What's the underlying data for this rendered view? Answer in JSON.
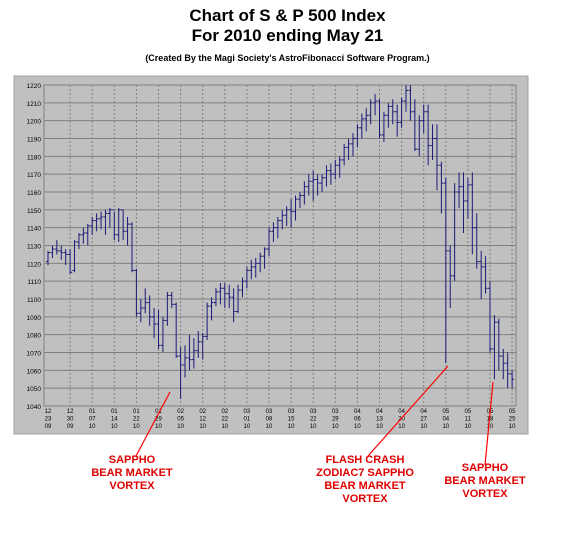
{
  "header": {
    "title_line1": "Chart of S & P 500 Index",
    "title_line2": "For 2010 ending May 21",
    "subtitle": "(Created By the Magi Society's AstroFibonacci Software Program.)"
  },
  "colors": {
    "panel_bg": "#c0c0c0",
    "grid": "#808080",
    "bars": "#1a1a7a",
    "annotation": "#e00000",
    "arrow": "#ff0000"
  },
  "chart_data": {
    "type": "ohlc",
    "title": "Chart of S & P 500 Index",
    "subtitle": "For 2010 ending May 21",
    "ylim": [
      1040,
      1220
    ],
    "yticks": [
      1040,
      1050,
      1060,
      1070,
      1080,
      1090,
      1100,
      1110,
      1120,
      1130,
      1140,
      1150,
      1160,
      1170,
      1180,
      1190,
      1200,
      1210,
      1220
    ],
    "xticks": [
      {
        "label": [
          "12",
          "23",
          "09"
        ],
        "idx": 0
      },
      {
        "label": [
          "12",
          "30",
          "09"
        ],
        "idx": 5
      },
      {
        "label": [
          "01",
          "07",
          "10"
        ],
        "idx": 10
      },
      {
        "label": [
          "01",
          "14",
          "10"
        ],
        "idx": 15
      },
      {
        "label": [
          "01",
          "22",
          "10"
        ],
        "idx": 20
      },
      {
        "label": [
          "01",
          "29",
          "10"
        ],
        "idx": 25
      },
      {
        "label": [
          "02",
          "05",
          "10"
        ],
        "idx": 30
      },
      {
        "label": [
          "02",
          "12",
          "10"
        ],
        "idx": 35
      },
      {
        "label": [
          "02",
          "22",
          "10"
        ],
        "idx": 40
      },
      {
        "label": [
          "03",
          "01",
          "10"
        ],
        "idx": 45
      },
      {
        "label": [
          "03",
          "08",
          "10"
        ],
        "idx": 50
      },
      {
        "label": [
          "03",
          "15",
          "10"
        ],
        "idx": 55
      },
      {
        "label": [
          "03",
          "22",
          "10"
        ],
        "idx": 60
      },
      {
        "label": [
          "03",
          "29",
          "10"
        ],
        "idx": 65
      },
      {
        "label": [
          "04",
          "06",
          "10"
        ],
        "idx": 70
      },
      {
        "label": [
          "04",
          "13",
          "10"
        ],
        "idx": 75
      },
      {
        "label": [
          "04",
          "20",
          "10"
        ],
        "idx": 80
      },
      {
        "label": [
          "04",
          "27",
          "10"
        ],
        "idx": 85
      },
      {
        "label": [
          "05",
          "04",
          "10"
        ],
        "idx": 90
      },
      {
        "label": [
          "05",
          "11",
          "10"
        ],
        "idx": 95
      },
      {
        "label": [
          "05",
          "18",
          "10"
        ],
        "idx": 100
      },
      {
        "label": [
          "05",
          "25",
          "10"
        ],
        "idx": 105
      }
    ],
    "x_count": 106,
    "grid": true,
    "ohlc": [
      [
        1121,
        1127,
        1119,
        1126
      ],
      [
        1126,
        1130,
        1123,
        1128
      ],
      [
        1128,
        1133,
        1125,
        1127
      ],
      [
        1127,
        1130,
        1122,
        1126
      ],
      [
        1126,
        1128,
        1119,
        1125
      ],
      [
        1125,
        1128,
        1114,
        1115
      ],
      [
        1116,
        1133,
        1115,
        1132
      ],
      [
        1132,
        1137,
        1128,
        1136
      ],
      [
        1136,
        1140,
        1131,
        1137
      ],
      [
        1137,
        1142,
        1130,
        1141
      ],
      [
        1141,
        1146,
        1136,
        1144
      ],
      [
        1144,
        1148,
        1138,
        1145
      ],
      [
        1145,
        1149,
        1139,
        1146
      ],
      [
        1146,
        1150,
        1136,
        1148
      ],
      [
        1148,
        1151,
        1140,
        1150
      ],
      [
        1150,
        1149,
        1133,
        1136
      ],
      [
        1136,
        1151,
        1132,
        1150
      ],
      [
        1150,
        1150,
        1133,
        1138
      ],
      [
        1138,
        1146,
        1130,
        1142
      ],
      [
        1142,
        1143,
        1115,
        1116
      ],
      [
        1116,
        1117,
        1090,
        1092
      ],
      [
        1092,
        1100,
        1087,
        1095
      ],
      [
        1095,
        1106,
        1092,
        1098
      ],
      [
        1098,
        1102,
        1085,
        1090
      ],
      [
        1090,
        1095,
        1078,
        1086
      ],
      [
        1086,
        1094,
        1072,
        1074
      ],
      [
        1074,
        1090,
        1070,
        1088
      ],
      [
        1088,
        1104,
        1085,
        1102
      ],
      [
        1102,
        1104,
        1095,
        1097
      ],
      [
        1097,
        1098,
        1067,
        1068
      ],
      [
        1068,
        1073,
        1044,
        1063
      ],
      [
        1063,
        1074,
        1056,
        1067
      ],
      [
        1067,
        1080,
        1060,
        1066
      ],
      [
        1066,
        1078,
        1061,
        1071
      ],
      [
        1071,
        1082,
        1067,
        1076
      ],
      [
        1076,
        1081,
        1066,
        1079
      ],
      [
        1079,
        1098,
        1077,
        1096
      ],
      [
        1096,
        1101,
        1088,
        1098
      ],
      [
        1098,
        1106,
        1096,
        1104
      ],
      [
        1104,
        1109,
        1097,
        1106
      ],
      [
        1106,
        1109,
        1095,
        1103
      ],
      [
        1103,
        1108,
        1095,
        1101
      ],
      [
        1101,
        1106,
        1087,
        1093
      ],
      [
        1093,
        1108,
        1092,
        1105
      ],
      [
        1105,
        1112,
        1101,
        1110
      ],
      [
        1110,
        1118,
        1106,
        1116
      ],
      [
        1116,
        1122,
        1111,
        1118
      ],
      [
        1118,
        1123,
        1112,
        1120
      ],
      [
        1120,
        1126,
        1115,
        1124
      ],
      [
        1124,
        1129,
        1117,
        1128
      ],
      [
        1128,
        1140,
        1124,
        1138
      ],
      [
        1138,
        1143,
        1132,
        1140
      ],
      [
        1140,
        1146,
        1134,
        1144
      ],
      [
        1144,
        1150,
        1139,
        1147
      ],
      [
        1147,
        1152,
        1141,
        1150
      ],
      [
        1150,
        1156,
        1140,
        1149
      ],
      [
        1149,
        1158,
        1144,
        1156
      ],
      [
        1156,
        1160,
        1151,
        1158
      ],
      [
        1158,
        1166,
        1153,
        1163
      ],
      [
        1163,
        1170,
        1158,
        1166
      ],
      [
        1166,
        1172,
        1155,
        1167
      ],
      [
        1167,
        1170,
        1158,
        1165
      ],
      [
        1165,
        1170,
        1160,
        1168
      ],
      [
        1168,
        1175,
        1163,
        1172
      ],
      [
        1172,
        1176,
        1164,
        1170
      ],
      [
        1170,
        1178,
        1167,
        1175
      ],
      [
        1175,
        1180,
        1168,
        1178
      ],
      [
        1178,
        1187,
        1175,
        1185
      ],
      [
        1185,
        1190,
        1178,
        1187
      ],
      [
        1187,
        1193,
        1180,
        1190
      ],
      [
        1190,
        1198,
        1185,
        1196
      ],
      [
        1196,
        1204,
        1190,
        1201
      ],
      [
        1201,
        1207,
        1194,
        1203
      ],
      [
        1203,
        1212,
        1198,
        1210
      ],
      [
        1210,
        1215,
        1203,
        1211
      ],
      [
        1211,
        1212,
        1190,
        1192
      ],
      [
        1192,
        1205,
        1188,
        1203
      ],
      [
        1203,
        1210,
        1196,
        1208
      ],
      [
        1208,
        1212,
        1198,
        1205
      ],
      [
        1205,
        1209,
        1191,
        1199
      ],
      [
        1199,
        1213,
        1196,
        1211
      ],
      [
        1211,
        1220,
        1205,
        1217
      ],
      [
        1217,
        1220,
        1200,
        1205
      ],
      [
        1205,
        1212,
        1183,
        1184
      ],
      [
        1184,
        1203,
        1180,
        1200
      ],
      [
        1200,
        1209,
        1193,
        1205
      ],
      [
        1205,
        1209,
        1175,
        1186
      ],
      [
        1186,
        1198,
        1178,
        1190
      ],
      [
        1190,
        1198,
        1161,
        1175
      ],
      [
        1175,
        1177,
        1148,
        1165
      ],
      [
        1165,
        1168,
        1064,
        1127
      ],
      [
        1127,
        1130,
        1095,
        1113
      ],
      [
        1113,
        1165,
        1110,
        1160
      ],
      [
        1160,
        1171,
        1151,
        1163
      ],
      [
        1163,
        1171,
        1137,
        1155
      ],
      [
        1155,
        1168,
        1145,
        1164
      ],
      [
        1164,
        1171,
        1125,
        1140
      ],
      [
        1140,
        1148,
        1117,
        1121
      ],
      [
        1121,
        1127,
        1100,
        1118
      ],
      [
        1118,
        1124,
        1103,
        1106
      ],
      [
        1106,
        1110,
        1070,
        1072
      ],
      [
        1072,
        1091,
        1055,
        1087
      ],
      [
        1087,
        1089,
        1060,
        1068
      ],
      [
        1068,
        1072,
        1055,
        1064
      ],
      [
        1064,
        1070,
        1050,
        1058
      ],
      [
        1058,
        1060,
        1050,
        1055
      ]
    ]
  },
  "annotations": [
    {
      "lines": [
        "SAPPHO",
        "BEAR MARKET",
        "VORTEX"
      ]
    },
    {
      "lines": [
        "FLASH CRASH",
        "ZODIAC7 SAPPHO",
        "BEAR MARKET",
        "VORTEX"
      ]
    },
    {
      "lines": [
        "SAPPHO",
        "BEAR MARKET",
        "VORTEX"
      ]
    }
  ]
}
